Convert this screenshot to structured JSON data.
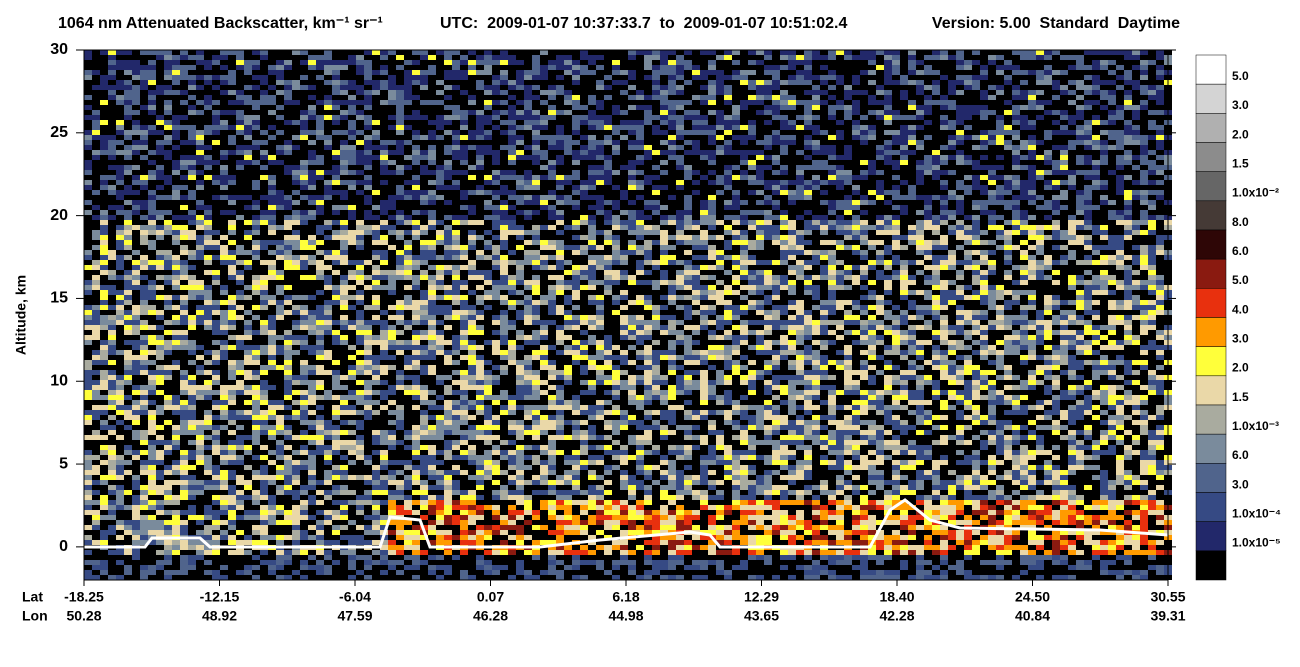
{
  "chart_data": {
    "type": "curtain",
    "title": "1064 nm Attenuated Backscatter, km⁻¹ sr⁻¹",
    "subtitle": "UTC:  2009-01-07 10:37:33.7  to  2009-01-07 10:51:02.4",
    "version": "Version: 5.00  Standard  Daytime",
    "ylabel": "Altitude, km",
    "ylim": [
      -2,
      30
    ],
    "yticks": [
      0,
      5,
      10,
      15,
      20,
      25,
      30
    ],
    "xtick_rows": [
      {
        "name": "Lat",
        "labels": [
          "-18.25",
          "-12.15",
          "-6.04",
          "0.07",
          "6.18",
          "12.29",
          "18.40",
          "24.50",
          "30.55"
        ]
      },
      {
        "name": "Lon",
        "labels": [
          "50.28",
          "48.92",
          "47.59",
          "46.28",
          "44.98",
          "43.65",
          "42.28",
          "40.84",
          "39.31"
        ]
      }
    ],
    "colorbar": {
      "colors": [
        "#ffffff",
        "#d4d4d4",
        "#b0b0b0",
        "#8c8c8c",
        "#666666",
        "#453a36",
        "#2e0606",
        "#8a1a10",
        "#e8300e",
        "#ff9a00",
        "#ffff3a",
        "#ead8a8",
        "#a9ab9f",
        "#7a8b9c",
        "#50648c",
        "#364a84",
        "#22286a",
        "#000000"
      ],
      "labels": [
        "5.0",
        "3.0",
        "2.0",
        "1.5",
        "1.0x10⁻²",
        "8.0",
        "6.0",
        "5.0",
        "4.0",
        "3.0",
        "2.0",
        "1.5",
        "1.0x10⁻³",
        "6.0",
        "3.0",
        "1.0x10⁻⁴",
        "1.0x10⁻⁵"
      ]
    }
  }
}
